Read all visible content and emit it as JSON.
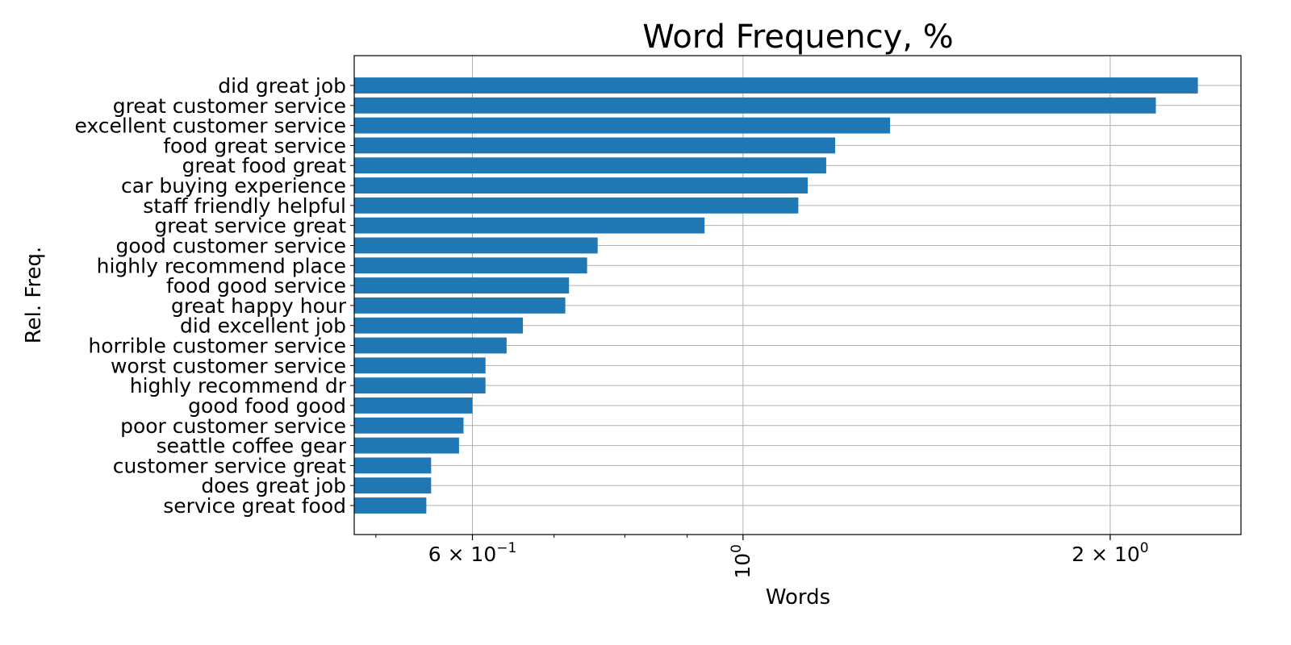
{
  "chart_data": {
    "type": "bar",
    "orientation": "horizontal",
    "title": "Word Frequency, %",
    "xlabel": "Words",
    "ylabel": "Rel. Freq.",
    "x_scale": "log",
    "xlim": [
      0.48,
      2.56
    ],
    "grid": true,
    "bar_color": "#1f77b4",
    "grid_color": "#b0b0b0",
    "categories": [
      "did great job",
      "great customer service",
      "excellent customer service",
      "food great service",
      "great food great",
      "car buying experience",
      "staff friendly helpful",
      "great service great",
      "good customer service",
      "highly recommend place",
      "food good service",
      "great happy hour",
      "did excellent job",
      "horrible customer service",
      "worst customer service",
      "highly recommend dr",
      "good food good",
      "poor customer service",
      "seattle coffee gear",
      "customer service great",
      "does great job",
      "service great food"
    ],
    "values": [
      2.36,
      2.18,
      1.32,
      1.19,
      1.17,
      1.13,
      1.11,
      0.93,
      0.76,
      0.745,
      0.72,
      0.715,
      0.66,
      0.64,
      0.615,
      0.615,
      0.6,
      0.59,
      0.585,
      0.555,
      0.555,
      0.55
    ],
    "x_ticks": [
      {
        "value": 0.6,
        "base": "6 × 10",
        "exp": "−1",
        "rotated": false
      },
      {
        "value": 1.0,
        "base": "10",
        "exp": "0",
        "rotated": true
      },
      {
        "value": 2.0,
        "base": "2 × 10",
        "exp": "0",
        "rotated": false
      }
    ]
  }
}
